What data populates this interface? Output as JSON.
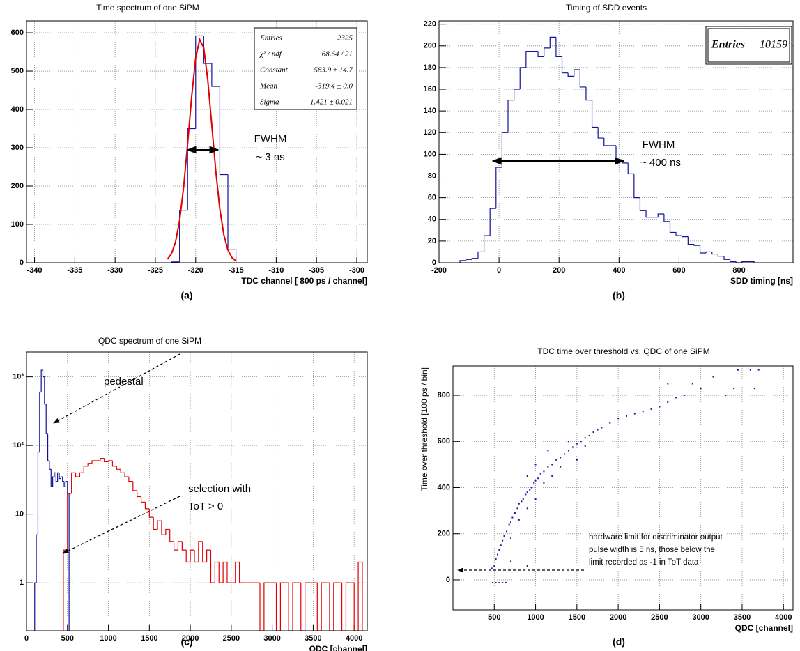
{
  "chart_data": [
    {
      "type": "histogram",
      "title": "Time spectrum of one SiPM",
      "caption": "(a)",
      "xlabel": "TDC channel [ 800 ps / channel]",
      "bins": [
        -323,
        -322,
        -321,
        -320,
        -319,
        -318,
        -317,
        -316,
        -315
      ],
      "values": [
        2,
        137,
        350,
        592,
        520,
        460,
        230,
        34
      ],
      "color": "#13139a",
      "fit": {
        "x": [
          -323.5,
          -323,
          -322.5,
          -322,
          -321.5,
          -321,
          -320.5,
          -320,
          -319.5,
          -319,
          -318.5,
          -318,
          -317.5,
          -317,
          -316.5,
          -316,
          -315.5,
          -315
        ],
        "values": [
          9.1,
          23.6,
          54.1,
          109.5,
          196,
          309.8,
          432.7,
          534.1,
          582.4,
          561.2,
          477.8,
          359.4,
          238.8,
          140.3,
          72.8,
          33.4,
          13.5,
          4.8
        ],
        "color": "#e00000"
      },
      "stats": [
        {
          "label": "Entries",
          "value": "2325"
        },
        {
          "label": "χ² / ndf",
          "value": "68.64 / 21"
        },
        {
          "label": "Constant",
          "value": "583.9 ±  14.7"
        },
        {
          "label": "Mean",
          "value": "-319.4 ±  0.0"
        },
        {
          "label": "Sigma",
          "value": "1.421 ± 0.021"
        }
      ],
      "annotations": [
        "FWHM",
        "~ 3 ns"
      ],
      "xlim": [
        -341,
        -298.7
      ],
      "xticks": [
        -340,
        -335,
        -330,
        -325,
        -320,
        -315,
        -310,
        -305,
        -300
      ],
      "ylim": [
        0,
        631
      ],
      "yticks": [
        0,
        100,
        200,
        300,
        400,
        500,
        600
      ],
      "grid": true
    },
    {
      "type": "histogram",
      "title": "Timing of SDD events",
      "caption": "(b)",
      "xlabel": "SDD timing [ns]",
      "bins": [
        -130,
        -110,
        -90,
        -70,
        -50,
        -30,
        -10,
        10,
        30,
        50,
        70,
        90,
        110,
        130,
        150,
        170,
        190,
        210,
        230,
        250,
        270,
        290,
        310,
        330,
        350,
        370,
        390,
        410,
        430,
        450,
        470,
        490,
        510,
        530,
        550,
        570,
        590,
        610,
        630,
        650,
        670,
        690,
        710,
        730,
        750,
        770,
        790,
        810,
        830,
        850
      ],
      "values": [
        2,
        3,
        4,
        10,
        25,
        50,
        88,
        120,
        150,
        160,
        180,
        195,
        195,
        190,
        198,
        208,
        190,
        175,
        172,
        178,
        162,
        150,
        125,
        115,
        108,
        108,
        95,
        92,
        82,
        60,
        48,
        42,
        42,
        45,
        38,
        28,
        25,
        24,
        17,
        16,
        9,
        10,
        8,
        6,
        3,
        1,
        0,
        1,
        1
      ],
      "color": "#13139a",
      "stats": [
        {
          "label": "Entries",
          "value": "10159"
        }
      ],
      "annotations": [
        "FWHM",
        "~ 400 ns"
      ],
      "xlim": [
        -200,
        980
      ],
      "xticks": [
        -200,
        0,
        200,
        400,
        600,
        800
      ],
      "ylim": [
        0,
        223
      ],
      "yticks": [
        0,
        20,
        40,
        60,
        80,
        100,
        120,
        140,
        160,
        180,
        200,
        220
      ],
      "grid": true
    },
    {
      "type": "histogram",
      "title": "QDC spectrum of one SiPM",
      "caption": "(c)",
      "xlabel": "QDC [channel]",
      "log_y": true,
      "histograms": [
        {
          "bins": [
            100,
            120,
            140,
            160,
            180,
            200,
            220,
            240,
            260,
            280,
            300,
            320,
            340,
            360,
            380,
            400,
            420,
            440,
            460,
            480,
            500,
            520
          ],
          "values": [
            1,
            5,
            80,
            600,
            1250,
            1000,
            400,
            150,
            60,
            45,
            25,
            35,
            40,
            30,
            40,
            33,
            35,
            30,
            25,
            30,
            20
          ],
          "color": "#13139a"
        },
        {
          "bins": [
            450,
            500,
            550,
            600,
            650,
            700,
            750,
            800,
            850,
            900,
            950,
            1000,
            1050,
            1100,
            1150,
            1200,
            1250,
            1300,
            1350,
            1400,
            1450,
            1500,
            1550,
            1600,
            1650,
            1700,
            1750,
            1800,
            1850,
            1900,
            1950,
            2000,
            2050,
            2100,
            2150,
            2200,
            2250,
            2300,
            2350,
            2400,
            2450,
            2500,
            2550,
            2600,
            2650,
            2700,
            2750,
            2800,
            2850,
            2900,
            2950,
            3000,
            3050,
            3100,
            3150,
            3200,
            3250,
            3300,
            3350,
            3400,
            3450,
            3500,
            3550,
            3600,
            3650,
            3700,
            3750,
            3800,
            3850,
            3900,
            3950,
            4000,
            4050,
            4100
          ],
          "values": [
            3,
            20,
            40,
            35,
            40,
            50,
            55,
            60,
            60,
            65,
            58,
            60,
            50,
            45,
            40,
            35,
            30,
            22,
            18,
            15,
            12,
            9,
            6,
            8,
            5,
            6,
            4,
            3,
            4,
            3,
            2,
            3,
            2,
            4,
            2,
            3,
            1,
            2,
            1,
            2,
            1,
            1,
            2,
            1,
            1,
            1,
            1,
            1,
            0,
            1,
            1,
            1,
            0,
            1,
            1,
            0,
            1,
            1,
            0,
            1,
            1,
            1,
            0,
            1,
            1,
            0,
            1,
            1,
            0,
            1,
            1,
            0,
            2
          ],
          "color": "#e00000"
        }
      ],
      "annotations": [
        "pedestal",
        "selection with",
        "ToT > 0"
      ],
      "xlim": [
        0,
        4160
      ],
      "xticks": [
        0,
        500,
        1000,
        1500,
        2000,
        2500,
        3000,
        3500,
        4000
      ],
      "ylim": [
        0.2,
        2300
      ],
      "yticks": [
        1,
        10,
        {
          "value": 100,
          "label": "10²"
        },
        {
          "value": 1000,
          "label": "10³"
        }
      ],
      "grid": true
    },
    {
      "type": "scatter",
      "title": "TDC time over threshold vs. QDC of one SiPM",
      "caption": "(d)",
      "xlabel": "QDC [channel]",
      "ylabel": "Time over threshold [100 ps / bin]",
      "x": [
        480,
        520,
        560,
        600,
        640,
        470,
        500,
        520,
        540,
        560,
        580,
        600,
        620,
        650,
        680,
        700,
        720,
        750,
        780,
        800,
        830,
        850,
        880,
        900,
        930,
        950,
        980,
        1000,
        1030,
        1060,
        1100,
        1150,
        1200,
        1250,
        1300,
        1350,
        1400,
        1450,
        1500,
        1550,
        1600,
        1650,
        1700,
        1750,
        1800,
        1900,
        2000,
        2100,
        2200,
        2300,
        2400,
        2500,
        2600,
        2700,
        2800,
        2900,
        3000,
        3150,
        3300,
        3400,
        3450,
        3600,
        3650,
        3700,
        700,
        800,
        900,
        1000,
        1100,
        1200,
        1300,
        1000,
        900,
        1150,
        1400,
        1600,
        1500,
        2600,
        700,
        900
      ],
      "values": [
        -12,
        -12,
        -12,
        -12,
        -12,
        50,
        60,
        90,
        110,
        130,
        150,
        170,
        190,
        210,
        240,
        250,
        270,
        290,
        310,
        330,
        340,
        350,
        370,
        380,
        390,
        400,
        420,
        430,
        440,
        460,
        470,
        490,
        500,
        520,
        530,
        545,
        560,
        575,
        590,
        600,
        615,
        625,
        640,
        650,
        660,
        680,
        700,
        710,
        720,
        730,
        740,
        750,
        770,
        790,
        800,
        850,
        830,
        880,
        800,
        830,
        910,
        910,
        830,
        910,
        180,
        260,
        310,
        350,
        420,
        450,
        490,
        500,
        450,
        560,
        600,
        580,
        520,
        850,
        80,
        60
      ],
      "color": "#1a1a9c",
      "annotations": [
        "hardware limit for discriminator output",
        "pulse width is 5 ns, those below the",
        "limit recorded as -1 in ToT data"
      ],
      "xlim": [
        0,
        4116
      ],
      "xticks": [
        500,
        1000,
        1500,
        2000,
        2500,
        3000,
        3500,
        4000
      ],
      "ylim": [
        -130,
        927
      ],
      "yticks": [
        0,
        200,
        400,
        600,
        800
      ],
      "grid": true
    }
  ]
}
